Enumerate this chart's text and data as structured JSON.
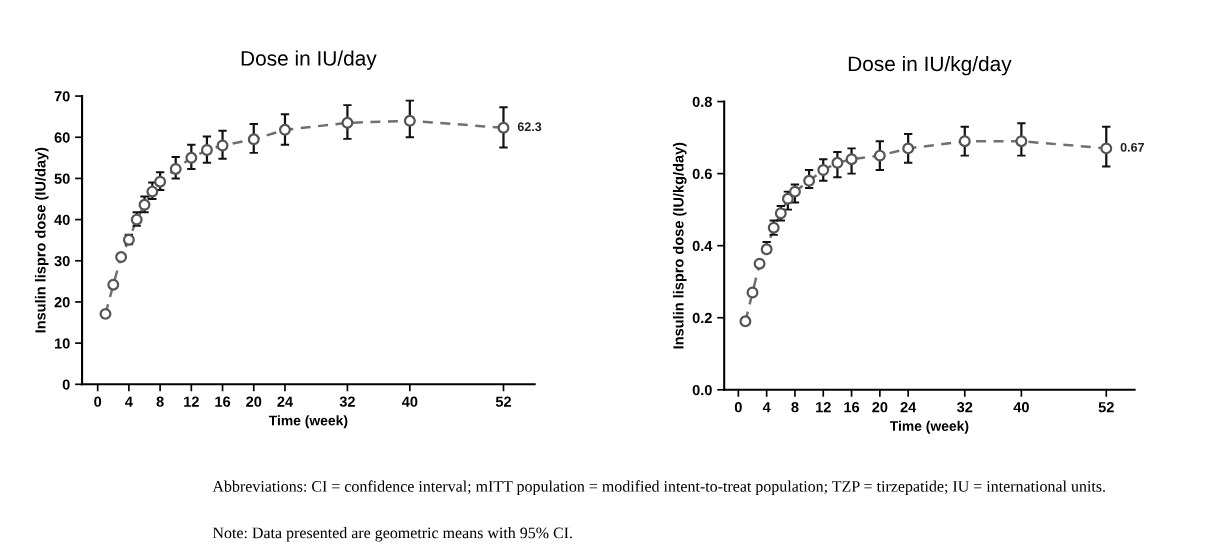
{
  "chart_data": [
    {
      "type": "line",
      "title": "Dose in IU/day",
      "xlabel": "Time (week)",
      "ylabel": "Insulin lispro dose (IU/day)",
      "x": [
        1,
        2,
        3,
        4,
        5,
        6,
        7,
        8,
        10,
        12,
        14,
        16,
        20,
        24,
        32,
        40,
        52
      ],
      "series": [
        {
          "color": "#707070",
          "values": [
            17.1,
            24.2,
            30.9,
            35.1,
            40.0,
            43.6,
            46.8,
            49.2,
            52.3,
            55.0,
            56.9,
            58.0,
            59.5,
            61.8,
            63.5,
            64.0,
            62.3
          ],
          "errors": [
            null,
            null,
            null,
            [
              34.0,
              36.3
            ],
            [
              38.5,
              41.8
            ],
            [
              41.8,
              45.6
            ],
            [
              45.0,
              49.0
            ],
            [
              47.2,
              51.5
            ],
            [
              50.0,
              55.2
            ],
            [
              52.3,
              58.2
            ],
            [
              53.8,
              60.2
            ],
            [
              54.8,
              61.6
            ],
            [
              56.2,
              63.2
            ],
            [
              58.2,
              65.6
            ],
            [
              59.6,
              67.8
            ],
            [
              60.0,
              68.9
            ],
            [
              57.5,
              67.3
            ]
          ],
          "value_labels": [
            null,
            null,
            null,
            null,
            null,
            null,
            null,
            null,
            null,
            null,
            null,
            null,
            null,
            null,
            null,
            null,
            "62.3"
          ]
        }
      ],
      "marker": "circle",
      "line_style": "dashed",
      "xlim": [
        -2,
        56
      ],
      "xticks": [
        0,
        4,
        8,
        12,
        16,
        20,
        24,
        32,
        40,
        52
      ],
      "ylim": [
        0,
        70
      ],
      "yticks": [
        0,
        10,
        20,
        30,
        40,
        50,
        60,
        70
      ],
      "grid": false,
      "legend": false,
      "annotations": [
        "Abbreviations: CI = confidence interval; mITT population = modified intent-to-treat population; TZP = tirzepatide; IU = international units.",
        "Note: Data presented are geometric means with 95% CI."
      ]
    },
    {
      "type": "line",
      "title": "Dose in IU/kg/day",
      "xlabel": "Time (week)",
      "ylabel": "Insulin lispro dose (IU/kg/day)",
      "x": [
        1,
        2,
        3,
        4,
        5,
        6,
        7,
        8,
        10,
        12,
        14,
        16,
        20,
        24,
        32,
        40,
        52
      ],
      "series": [
        {
          "color": "#707070",
          "values": [
            0.19,
            0.27,
            0.35,
            0.39,
            0.45,
            0.49,
            0.53,
            0.55,
            0.58,
            0.61,
            0.63,
            0.64,
            0.65,
            0.67,
            0.69,
            0.69,
            0.67
          ],
          "errors": [
            null,
            null,
            null,
            [
              0.38,
              0.41
            ],
            [
              0.43,
              0.47
            ],
            [
              0.47,
              0.51
            ],
            [
              0.5,
              0.55
            ],
            [
              0.52,
              0.57
            ],
            [
              0.56,
              0.61
            ],
            [
              0.58,
              0.64
            ],
            [
              0.59,
              0.66
            ],
            [
              0.6,
              0.67
            ],
            [
              0.61,
              0.69
            ],
            [
              0.63,
              0.71
            ],
            [
              0.65,
              0.73
            ],
            [
              0.65,
              0.74
            ],
            [
              0.62,
              0.73
            ]
          ],
          "value_labels": [
            null,
            null,
            null,
            null,
            null,
            null,
            null,
            null,
            null,
            null,
            null,
            null,
            null,
            null,
            null,
            null,
            "0.67"
          ]
        }
      ],
      "marker": "circle",
      "line_style": "dashed",
      "xlim": [
        -2,
        56
      ],
      "xticks": [
        0,
        4,
        8,
        12,
        16,
        20,
        24,
        32,
        40,
        52
      ],
      "ylim": [
        0.0,
        0.8
      ],
      "yticks": [
        {
          "value": 0.0,
          "label": "0.0"
        },
        0.2,
        0.4,
        0.6,
        0.8
      ],
      "grid": false,
      "legend": false
    }
  ]
}
